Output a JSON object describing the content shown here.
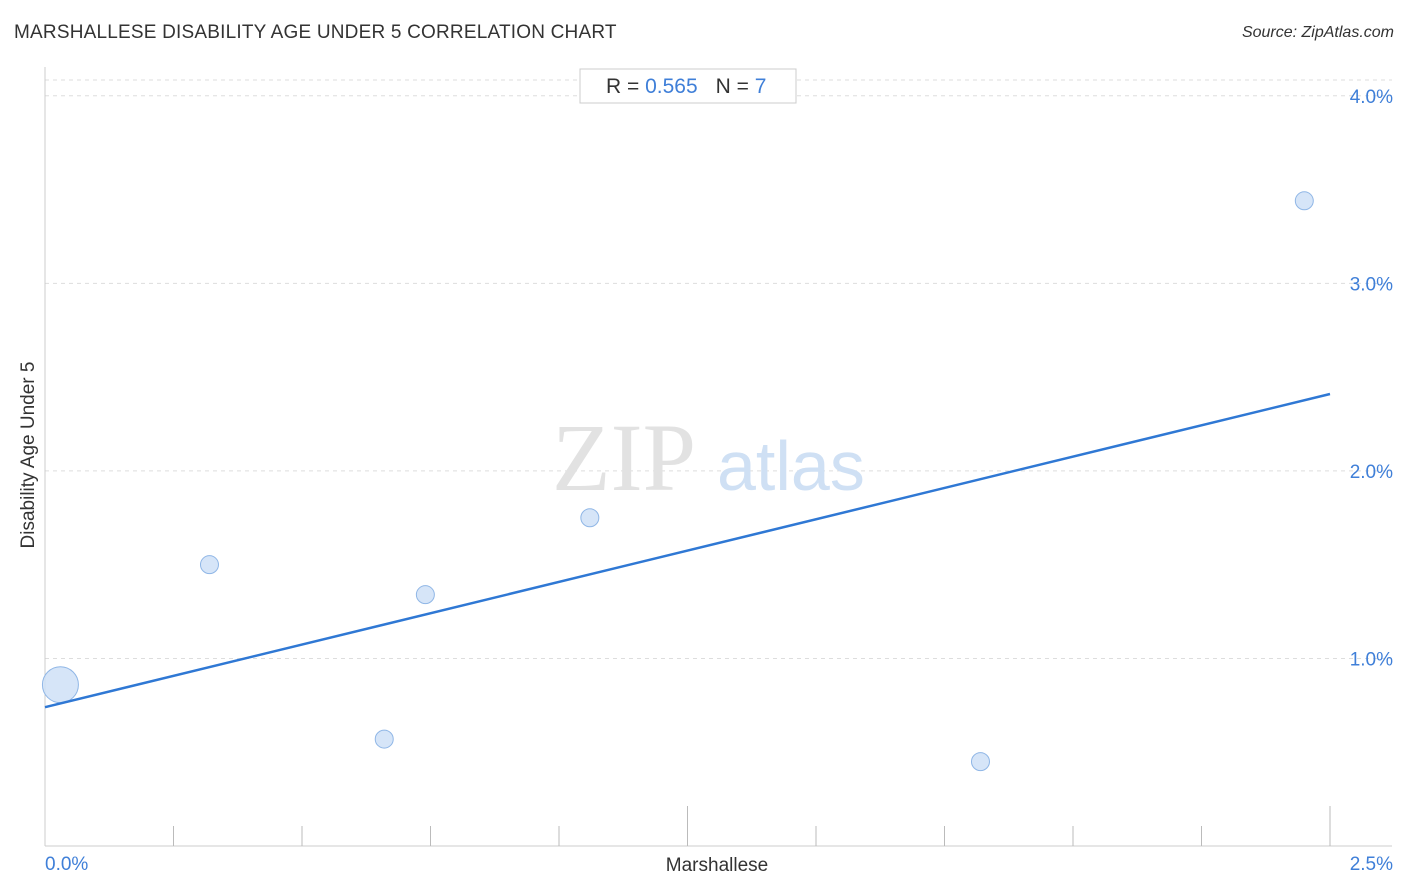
{
  "header": {
    "title": "MARSHALLESE DISABILITY AGE UNDER 5 CORRELATION CHART",
    "source": "Source: ZipAtlas.com"
  },
  "stats": {
    "r_label": "R = ",
    "r_value": "0.565",
    "n_label": "N = ",
    "n_value": "7"
  },
  "watermark": {
    "zip": "ZIP",
    "atlas": "atlas"
  },
  "chart_data": {
    "type": "scatter",
    "title": "MARSHALLESE DISABILITY AGE UNDER 5 CORRELATION CHART",
    "xlabel": "Marshallese",
    "ylabel": "Disability Age Under 5",
    "xlim": [
      0.0,
      2.5
    ],
    "ylim": [
      0.0,
      4.1
    ],
    "x_tick_labels": [
      "0.0%",
      "2.5%"
    ],
    "y_ticks": [
      1.0,
      2.0,
      3.0,
      4.0
    ],
    "y_tick_labels": [
      "1.0%",
      "2.0%",
      "3.0%",
      "4.0%"
    ],
    "grid": true,
    "points": [
      {
        "x": 0.03,
        "y": 0.86,
        "size": "large"
      },
      {
        "x": 0.32,
        "y": 1.5,
        "size": "small"
      },
      {
        "x": 0.66,
        "y": 0.57,
        "size": "small"
      },
      {
        "x": 0.74,
        "y": 1.34,
        "size": "small"
      },
      {
        "x": 1.06,
        "y": 1.75,
        "size": "small"
      },
      {
        "x": 1.82,
        "y": 0.45,
        "size": "small"
      },
      {
        "x": 2.45,
        "y": 3.44,
        "size": "small"
      }
    ],
    "trendline": {
      "x": [
        0.0,
        2.5
      ],
      "y": [
        0.74,
        2.41
      ]
    },
    "colors": {
      "point_fill": "#cfe1f7",
      "point_stroke": "#8fb6e6",
      "trendline": "#2f78d4",
      "tick_label": "#3f7fd8"
    }
  }
}
